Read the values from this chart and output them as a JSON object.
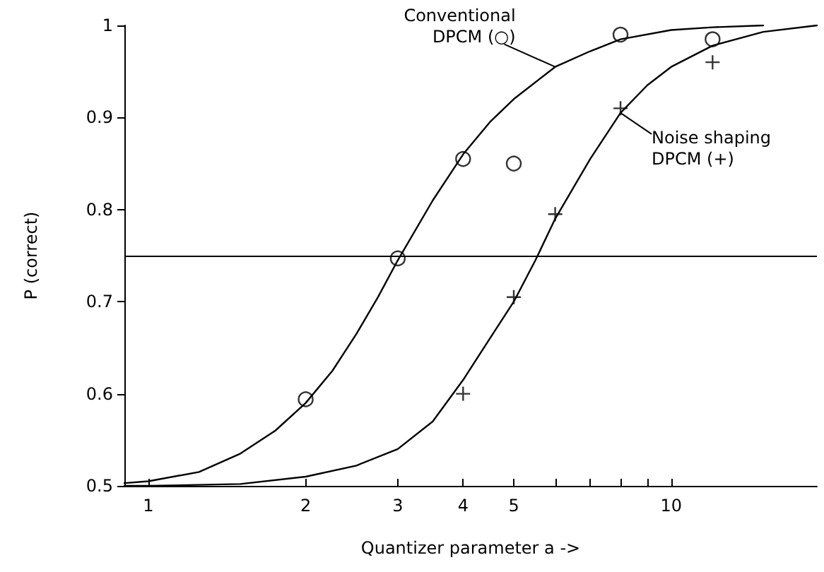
{
  "chart_data": {
    "type": "scatter",
    "xlabel": "Quantizer parameter a ->",
    "ylabel": "P (correct)",
    "log": "x",
    "xlim": [
      0.9,
      19
    ],
    "xticks": [
      1,
      2,
      3,
      4,
      5,
      {
        "value": 6,
        "label": null
      },
      {
        "value": 7,
        "label": null
      },
      {
        "value": 8,
        "label": null
      },
      {
        "value": 9,
        "label": null
      },
      10
    ],
    "ylim": [
      0.5,
      1.0
    ],
    "yticks": [
      0.5,
      0.6,
      0.7,
      0.8,
      0.9,
      1.0
    ],
    "grid": false,
    "series": [
      {
        "type": "line",
        "marker": "none",
        "color": "#000000",
        "x": [
          0.9,
          1,
          1.25,
          1.5,
          1.75,
          2,
          2.25,
          2.5,
          2.75,
          3,
          3.5,
          4,
          4.5,
          5,
          6,
          7,
          8,
          10,
          12,
          15
        ],
        "values": [
          0.503,
          0.505,
          0.515,
          0.535,
          0.56,
          0.59,
          0.625,
          0.665,
          0.705,
          0.745,
          0.81,
          0.86,
          0.895,
          0.92,
          0.955,
          0.972,
          0.985,
          0.995,
          0.998,
          1.0
        ]
      },
      {
        "type": "line",
        "marker": "none",
        "color": "#000000",
        "x": [
          0.9,
          1,
          1.5,
          2,
          2.5,
          3,
          3.5,
          4,
          4.5,
          5,
          5.5,
          6,
          7,
          8,
          9,
          10,
          12,
          15,
          19
        ],
        "values": [
          0.5,
          0.5,
          0.502,
          0.51,
          0.522,
          0.54,
          0.57,
          0.615,
          0.66,
          0.7,
          0.745,
          0.79,
          0.855,
          0.905,
          0.935,
          0.955,
          0.978,
          0.993,
          1.0
        ]
      },
      {
        "marker": "circle",
        "color": "#000000",
        "x": [
          2,
          3,
          4,
          5,
          8,
          12
        ],
        "values": [
          0.594,
          0.747,
          0.855,
          0.85,
          0.99,
          0.985
        ]
      },
      {
        "marker": "cross",
        "color": "#000000",
        "x": [
          4,
          5,
          6,
          8,
          12
        ],
        "values": [
          0.6,
          0.705,
          0.795,
          0.91,
          0.96
        ]
      }
    ],
    "ref_lines": [
      {
        "axis": "y",
        "value": 0.75,
        "color": "#000000",
        "line_style": "solid"
      }
    ],
    "annotations": [
      {
        "text": "Conventional\nDPCM (○)",
        "x": 6,
        "y": 0.955
      },
      {
        "text": "Noise shaping\nDPCM (+)",
        "x": 8,
        "y": 0.905
      }
    ]
  }
}
